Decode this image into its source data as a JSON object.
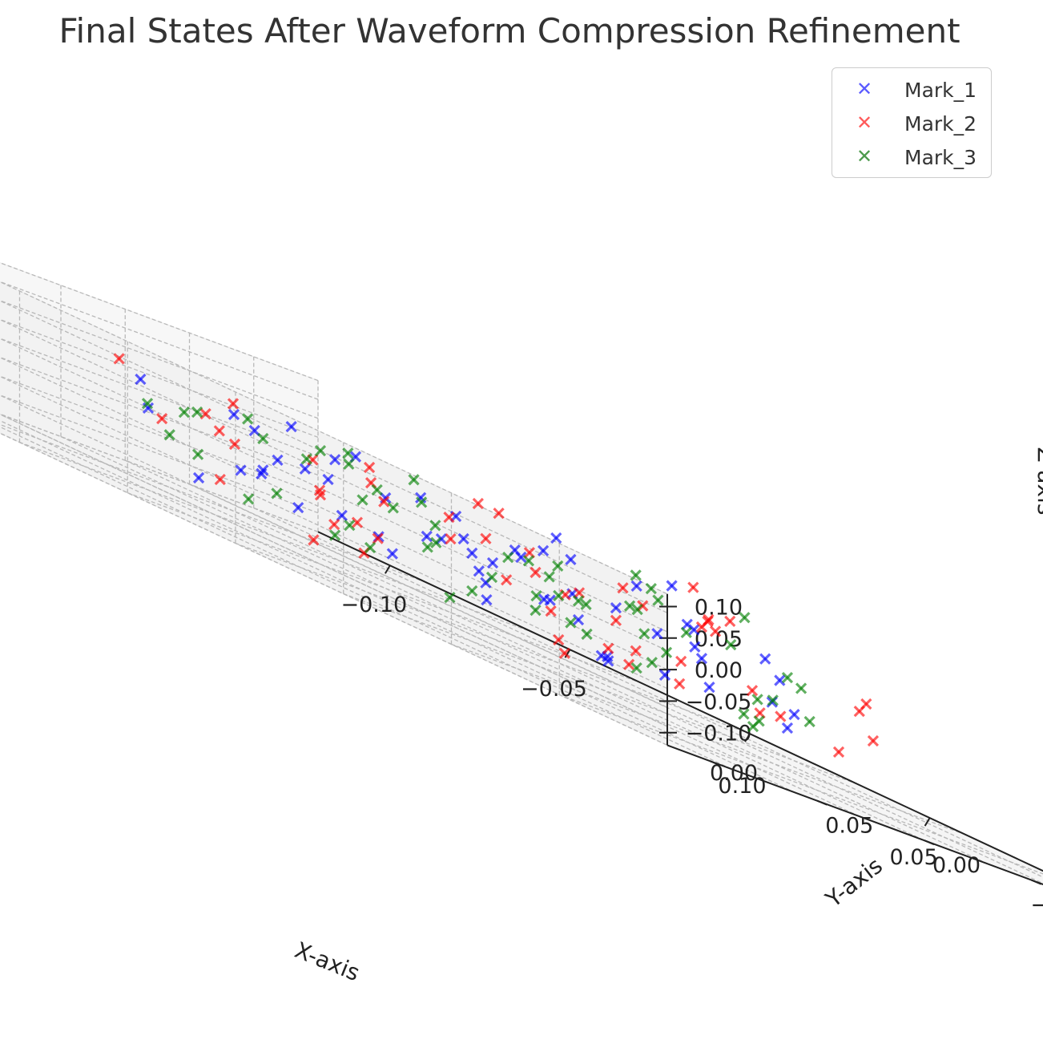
{
  "chart_data": {
    "type": "scatter",
    "projection": "3d",
    "title": "Final States After Waveform Compression Refinement",
    "xlabel": "X-axis",
    "ylabel": "Y-axis",
    "zlabel": "Z-axis",
    "xlim": [
      -0.12,
      0.12
    ],
    "ylim": [
      -0.12,
      0.12
    ],
    "zlim": [
      -0.12,
      0.12
    ],
    "ticks": [
      -0.1,
      -0.05,
      0.0,
      0.05,
      0.1
    ],
    "tick_labels": [
      "−0.10",
      "−0.05",
      "0.00",
      "0.05",
      "0.10"
    ],
    "grid": true,
    "legend_position": "top-right",
    "marker": "x",
    "series": [
      {
        "name": "Mark_1",
        "color": "#0000ff",
        "points": [
          [
            -0.03,
            -0.08,
            0.06
          ],
          [
            0.02,
            -0.05,
            0.08
          ],
          [
            -0.06,
            0.02,
            0.05
          ],
          [
            0.04,
            0.03,
            0.02
          ],
          [
            -0.02,
            -0.02,
            0.01
          ],
          [
            0.01,
            0.02,
            -0.03
          ],
          [
            -0.05,
            -0.06,
            -0.02
          ],
          [
            0.06,
            0.05,
            -0.05
          ],
          [
            0.03,
            -0.03,
            -0.06
          ],
          [
            -0.01,
            0.06,
            0.03
          ],
          [
            0.05,
            -0.01,
            0.04
          ],
          [
            -0.04,
            0.04,
            -0.01
          ],
          [
            0.02,
            0.01,
            0.06
          ],
          [
            -0.07,
            -0.03,
            0.0
          ],
          [
            0.07,
            0.02,
            0.01
          ],
          [
            0.0,
            -0.04,
            -0.04
          ],
          [
            -0.03,
            0.05,
            0.02
          ],
          [
            0.04,
            -0.06,
            0.03
          ],
          [
            -0.06,
            -0.01,
            -0.06
          ],
          [
            0.01,
            0.07,
            -0.02
          ],
          [
            0.03,
            0.04,
            0.05
          ],
          [
            -0.02,
            -0.07,
            0.04
          ],
          [
            0.05,
            0.06,
            0.0
          ],
          [
            -0.05,
            0.01,
            0.07
          ],
          [
            0.0,
            0.0,
            0.0
          ],
          [
            0.06,
            -0.04,
            -0.03
          ],
          [
            -0.08,
            0.03,
            0.04
          ],
          [
            0.02,
            -0.02,
            -0.07
          ],
          [
            -0.01,
            0.03,
            -0.05
          ],
          [
            0.04,
            0.0,
            0.07
          ],
          [
            -0.04,
            -0.05,
            0.03
          ],
          [
            0.08,
            0.04,
            0.03
          ],
          [
            0.01,
            -0.06,
            -0.01
          ],
          [
            -0.03,
            0.02,
            -0.03
          ],
          [
            0.05,
            0.03,
            -0.06
          ],
          [
            -0.06,
            0.06,
            0.01
          ],
          [
            0.03,
            -0.08,
            -0.04
          ],
          [
            -0.02,
            0.0,
            0.05
          ],
          [
            0.07,
            -0.02,
            -0.05
          ],
          [
            -0.09,
            -0.04,
            0.02
          ],
          [
            0.0,
            0.05,
            0.04
          ],
          [
            0.04,
            0.07,
            -0.04
          ],
          [
            -0.05,
            -0.02,
            0.06
          ],
          [
            0.02,
            0.04,
            -0.01
          ],
          [
            -0.07,
            0.0,
            -0.04
          ],
          [
            0.06,
            0.01,
            0.05
          ],
          [
            -0.01,
            -0.03,
            0.02
          ],
          [
            0.03,
            0.06,
            0.02
          ],
          [
            -0.04,
            0.07,
            -0.06
          ],
          [
            0.05,
            -0.05,
            0.01
          ],
          [
            -0.1,
            -0.06,
            -0.05
          ],
          [
            0.09,
            0.05,
            -0.02
          ],
          [
            -0.02,
            0.04,
            0.06
          ],
          [
            0.01,
            -0.01,
            -0.02
          ],
          [
            -0.06,
            -0.07,
            -0.03
          ],
          [
            0.07,
            0.06,
            0.04
          ]
        ]
      },
      {
        "name": "Mark_2",
        "color": "#ff0000",
        "points": [
          [
            0.02,
            -0.06,
            0.09
          ],
          [
            -0.05,
            0.05,
            0.04
          ],
          [
            0.06,
            0.0,
            0.07
          ],
          [
            -0.03,
            -0.03,
            0.03
          ],
          [
            0.04,
            0.04,
            -0.02
          ],
          [
            -0.07,
            0.01,
            0.01
          ],
          [
            0.01,
            -0.05,
            -0.05
          ],
          [
            0.07,
            0.06,
            0.02
          ],
          [
            -0.02,
            0.02,
            -0.04
          ],
          [
            0.05,
            -0.02,
            0.05
          ],
          [
            -0.04,
            -0.07,
            0.06
          ],
          [
            0.09,
            0.03,
            0.0
          ],
          [
            0.0,
            0.06,
            -0.06
          ],
          [
            -0.06,
            -0.02,
            -0.02
          ],
          [
            0.03,
            0.01,
            0.02
          ],
          [
            0.08,
            -0.04,
            0.04
          ],
          [
            -0.01,
            -0.01,
            0.08
          ],
          [
            0.06,
            0.07,
            -0.05
          ],
          [
            -0.08,
            0.04,
            0.06
          ],
          [
            0.02,
            -0.03,
            -0.07
          ],
          [
            -0.05,
            0.0,
            0.03
          ],
          [
            0.04,
            0.05,
            0.06
          ],
          [
            0.1,
            0.08,
            0.01
          ],
          [
            -0.03,
            0.03,
            -0.01
          ],
          [
            0.07,
            -0.06,
            -0.02
          ],
          [
            0.01,
            0.02,
            0.04
          ],
          [
            -0.06,
            -0.05,
            0.0
          ],
          [
            0.05,
            0.03,
            -0.04
          ],
          [
            -0.02,
            -0.04,
            -0.03
          ],
          [
            0.03,
            0.07,
            0.03
          ],
          [
            -0.09,
            -0.03,
            0.05
          ],
          [
            0.08,
            0.0,
            -0.03
          ],
          [
            0.0,
            -0.07,
            0.02
          ],
          [
            -0.04,
            0.06,
            -0.05
          ],
          [
            0.06,
            -0.01,
            0.08
          ],
          [
            -0.01,
            0.04,
            0.05
          ],
          [
            0.04,
            -0.02,
            -0.06
          ],
          [
            -0.07,
            -0.06,
            0.04
          ],
          [
            0.11,
            0.06,
            -0.02
          ],
          [
            0.02,
            0.0,
            -0.09
          ],
          [
            -0.03,
            0.07,
            0.02
          ],
          [
            0.05,
            0.05,
            0.02
          ],
          [
            0.0,
            -0.02,
            0.01
          ],
          [
            0.07,
            0.02,
            0.06
          ],
          [
            -0.05,
            -0.01,
            -0.06
          ],
          [
            0.09,
            -0.02,
            0.03
          ],
          [
            -0.02,
            0.05,
            -0.08
          ],
          [
            0.03,
            -0.05,
            0.05
          ],
          [
            -0.08,
            0.02,
            -0.01
          ],
          [
            0.06,
            0.04,
            0.07
          ],
          [
            0.01,
            0.08,
            -0.01
          ],
          [
            0.12,
            0.04,
            -0.03
          ]
        ]
      },
      {
        "name": "Mark_3",
        "color": "#008000",
        "points": [
          [
            -0.04,
            0.0,
            0.05
          ],
          [
            0.03,
            -0.04,
            0.02
          ],
          [
            -0.01,
            0.05,
            -0.03
          ],
          [
            0.05,
            0.02,
            0.04
          ],
          [
            -0.06,
            -0.04,
            -0.01
          ],
          [
            0.02,
            0.06,
            0.01
          ],
          [
            0.0,
            -0.02,
            -0.05
          ],
          [
            -0.03,
            0.03,
            0.06
          ],
          [
            0.06,
            -0.03,
            -0.02
          ],
          [
            -0.05,
            0.06,
            0.03
          ],
          [
            0.04,
            0.0,
            -0.06
          ],
          [
            -0.02,
            -0.06,
            0.0
          ],
          [
            0.07,
            0.05,
            0.05
          ],
          [
            -0.07,
            0.02,
            -0.04
          ],
          [
            0.01,
            -0.05,
            0.07
          ],
          [
            0.03,
            0.03,
            -0.01
          ],
          [
            -0.08,
            -0.02,
            0.04
          ],
          [
            0.08,
            0.01,
            -0.05
          ],
          [
            -0.01,
            0.01,
            0.02
          ],
          [
            0.05,
            -0.06,
            0.01
          ],
          [
            -0.04,
            -0.01,
            -0.07
          ],
          [
            0.02,
            0.08,
            0.04
          ],
          [
            0.06,
            0.03,
            0.01
          ],
          [
            -0.06,
            0.05,
            -0.02
          ],
          [
            0.0,
            0.02,
            -0.08
          ],
          [
            0.04,
            -0.01,
            0.06
          ],
          [
            -0.03,
            -0.05,
            -0.04
          ],
          [
            0.07,
            -0.02,
            0.03
          ],
          [
            -0.02,
            0.04,
            -0.06
          ],
          [
            0.01,
            0.0,
            0.03
          ],
          [
            0.09,
            0.04,
            0.06
          ],
          [
            -0.05,
            -0.03,
            0.02
          ],
          [
            0.03,
            0.06,
            -0.04
          ],
          [
            -0.09,
            0.01,
            0.0
          ],
          [
            0.05,
            0.01,
            0.08
          ],
          [
            0.0,
            -0.04,
            -0.01
          ],
          [
            -0.07,
            -0.05,
            0.05
          ],
          [
            0.08,
            0.06,
            -0.02
          ],
          [
            -0.01,
            0.07,
            0.05
          ],
          [
            0.04,
            -0.05,
            -0.07
          ],
          [
            0.02,
            -0.01,
            0.0
          ],
          [
            -0.04,
            0.04,
            0.04
          ],
          [
            0.06,
            0.07,
            0.02
          ],
          [
            -0.03,
            -0.02,
            -0.03
          ],
          [
            0.1,
            0.02,
            -0.01
          ],
          [
            -0.06,
            0.0,
            -0.05
          ],
          [
            0.03,
            0.02,
            0.05
          ],
          [
            -0.02,
            -0.07,
            -0.06
          ],
          [
            0.07,
            0.0,
            0.1
          ],
          [
            0.12,
            0.08,
            -0.04
          ],
          [
            -0.1,
            -0.03,
            0.01
          ],
          [
            0.01,
            0.05,
            0.06
          ],
          [
            0.05,
            0.04,
            -0.03
          ],
          [
            -0.05,
            0.03,
            -0.07
          ],
          [
            0.02,
            -0.09,
            -0.05
          ],
          [
            0.09,
            0.07,
            0.01
          ],
          [
            -0.01,
            0.02,
            0.08
          ],
          [
            0.04,
            0.06,
            0.04
          ]
        ]
      }
    ]
  }
}
